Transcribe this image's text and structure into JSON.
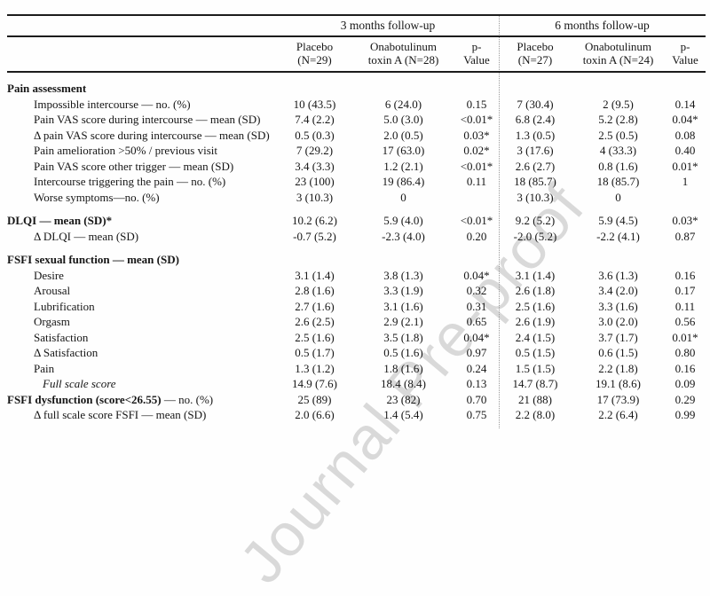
{
  "watermark": {
    "text": "Journal Pre-proof",
    "color": "#d9d9d9"
  },
  "table": {
    "groups": [
      "3 months follow-up",
      "6 months follow-up"
    ],
    "columns": [
      {
        "l1": "Placebo",
        "l2": "(N=29)"
      },
      {
        "l1": "Onabotulinum",
        "l2": "toxin A (N=28)"
      },
      {
        "l1": "p-",
        "l2": "Value"
      },
      {
        "l1": "Placebo",
        "l2": "(N=27)"
      },
      {
        "l1": "Onabotulinum",
        "l2": "toxin A (N=24)"
      },
      {
        "l1": "p-",
        "l2": "Value"
      }
    ],
    "rows": [
      {
        "label": "Pain assessment",
        "style": "section",
        "first": true,
        "values": [
          "",
          "",
          "",
          "",
          "",
          ""
        ]
      },
      {
        "label": "Impossible intercourse — no. (%)",
        "style": "item",
        "values": [
          "10 (43.5)",
          "6 (24.0)",
          "0.15",
          "7 (30.4)",
          "2 (9.5)",
          "0.14"
        ]
      },
      {
        "label": "Pain VAS score during intercourse — mean (SD)",
        "style": "item",
        "valign": "painvas",
        "values": [
          "7.4 (2.2)",
          "5.0 (3.0)",
          "<0.01*",
          "6.8 (2.4)",
          "5.2 (2.8)",
          "0.04*"
        ]
      },
      {
        "label": "Δ pain VAS score during intercourse — mean (SD)",
        "style": "item",
        "values": [
          "0.5 (0.3)",
          "2.0 (0.5)",
          "0.03*",
          "1.3 (0.5)",
          "2.5 (0.5)",
          "0.08"
        ]
      },
      {
        "label": "Pain amelioration >50% / previous visit",
        "style": "item",
        "values": [
          "7 (29.2)",
          "17 (63.0)",
          "0.02*",
          "3 (17.6)",
          "4 (33.3)",
          "0.40"
        ]
      },
      {
        "label": "Pain VAS score other trigger — mean (SD)",
        "style": "item",
        "values": [
          "3.4 (3.3)",
          "1.2 (2.1)",
          "<0.01*",
          "2.6 (2.7)",
          "0.8 (1.6)",
          "0.01*"
        ]
      },
      {
        "label": "Intercourse triggering the pain — no. (%)",
        "style": "item",
        "values": [
          "23 (100)",
          "19 (86.4)",
          "0.11",
          "18 (85.7)",
          "18 (85.7)",
          "1"
        ]
      },
      {
        "label": "Worse symptoms—no. (%)",
        "style": "item",
        "values": [
          "3 (10.3)",
          "0",
          "",
          "3 (10.3)",
          "0",
          ""
        ]
      },
      {
        "label": "DLQI — mean (SD)*",
        "style": "section",
        "gap": true,
        "values": [
          "10.2 (6.2)",
          "5.9 (4.0)",
          "<0.01*",
          "9.2 (5.2)",
          "5.9 (4.5)",
          "0.03*"
        ]
      },
      {
        "label": "Δ DLQI — mean (SD)",
        "style": "item",
        "values": [
          "-0.7 (5.2)",
          "-2.3 (4.0)",
          "0.20",
          "-2.0 (5.2)",
          "-2.2 (4.1)",
          "0.87"
        ]
      },
      {
        "label": "FSFI sexual function — mean (SD)",
        "style": "section",
        "gap": true,
        "values": [
          "",
          "",
          "",
          "",
          "",
          ""
        ]
      },
      {
        "label": "Desire",
        "style": "item",
        "values": [
          "3.1 (1.4)",
          "3.8 (1.3)",
          "0.04*",
          "3.1 (1.4)",
          "3.6 (1.3)",
          "0.16"
        ]
      },
      {
        "label": "Arousal",
        "style": "item",
        "values": [
          "2.8 (1.6)",
          "3.3 (1.9)",
          "0.32",
          "2.6 (1.8)",
          "3.4 (2.0)",
          "0.17"
        ]
      },
      {
        "label": "Lubrification",
        "style": "item",
        "values": [
          "2.7 (1.6)",
          "3.1 (1.6)",
          "0.31",
          "2.5 (1.6)",
          "3.3 (1.6)",
          "0.11"
        ]
      },
      {
        "label": "Orgasm",
        "style": "item",
        "values": [
          "2.6 (2.5)",
          "2.9 (2.1)",
          "0.65",
          "2.6 (1.9)",
          "3.0 (2.0)",
          "0.56"
        ]
      },
      {
        "label": "Satisfaction",
        "style": "item",
        "values": [
          "2.5 (1.6)",
          "3.5 (1.8)",
          "0.04*",
          "2.4 (1.5)",
          "3.7 (1.7)",
          "0.01*"
        ]
      },
      {
        "label": "Δ Satisfaction",
        "style": "item",
        "values": [
          "0.5 (1.7)",
          "0.5 (1.6)",
          "0.97",
          "0.5 (1.5)",
          "0.6 (1.5)",
          "0.80"
        ]
      },
      {
        "label": "Pain",
        "style": "item",
        "values": [
          "1.3 (1.2)",
          "1.8 (1.6)",
          "0.24",
          "1.5 (1.5)",
          "2.2 (1.8)",
          "0.16"
        ]
      },
      {
        "label": "Full scale score",
        "style": "item-italic",
        "values": [
          "14.9 (7.6)",
          "18.4 (8.4)",
          "0.13",
          "14.7 (8.7)",
          "19.1 (8.6)",
          "0.09"
        ]
      },
      {
        "label_bold": "FSFI dysfunction (score<26.55)",
        "label_rest": " — no. (%)",
        "style": "section-mixed",
        "values": [
          "25 (89)",
          "23 (82)",
          "0.70",
          "21 (88)",
          "17 (73.9)",
          "0.29"
        ]
      },
      {
        "label": "Δ full scale score FSFI — mean (SD)",
        "style": "item",
        "values": [
          "2.0 (6.6)",
          "1.4 (5.4)",
          "0.75",
          "2.2 (8.0)",
          "2.2 (6.4)",
          "0.99"
        ]
      }
    ]
  }
}
